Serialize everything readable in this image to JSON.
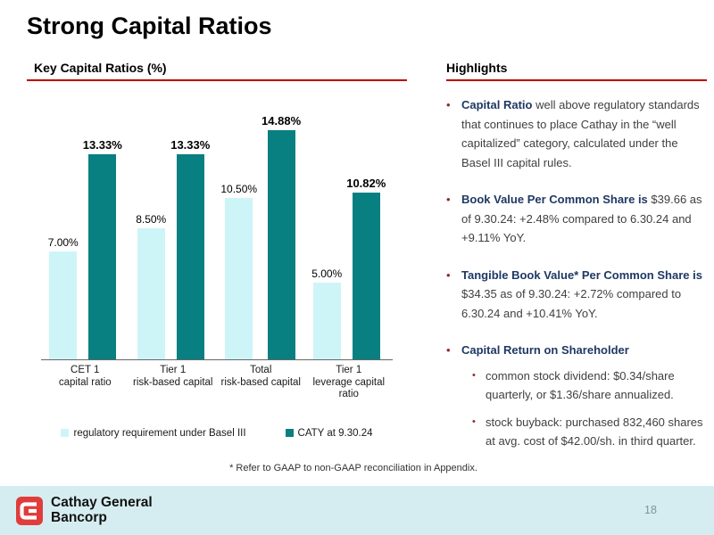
{
  "title": "Strong Capital Ratios",
  "colors": {
    "accent_red": "#c00000",
    "bullet_dot": "#8f2b2a",
    "navy_bold_text": "#1f3864",
    "body_text": "#3f3f3f",
    "teal_dark": "#087f81",
    "cyan_light": "#cdf5f7",
    "footer_bg": "#d5edf0",
    "logo_red": "#e03c3c",
    "page_number_gray": "#7e939b"
  },
  "chart_data": {
    "type": "bar",
    "title": "Key Capital Ratios (%)",
    "categories": [
      [
        "CET 1",
        "capital ratio"
      ],
      [
        "Tier 1",
        "risk-based capital"
      ],
      [
        "Total",
        "risk-based capital"
      ],
      [
        "Tier 1",
        "leverage capital ratio"
      ]
    ],
    "series": [
      {
        "name": "regulatory requirement under Basel III",
        "color": "#cdf5f7",
        "values": [
          7.0,
          8.5,
          10.5,
          5.0
        ],
        "labels": [
          "7.00%",
          "8.50%",
          "10.50%",
          "5.00%"
        ],
        "label_bold": false
      },
      {
        "name": "CATY at 9.30.24",
        "color": "#087f81",
        "values": [
          13.33,
          13.33,
          14.88,
          10.82
        ],
        "labels": [
          "13.33%",
          "13.33%",
          "14.88%",
          "10.82%"
        ],
        "label_bold": true
      }
    ],
    "xlabel": "",
    "ylabel": "",
    "ylim": [
      0,
      16
    ],
    "grid": false,
    "legend_position": "bottom"
  },
  "highlights": {
    "header": "Highlights",
    "bullets": [
      {
        "lead": "Capital Ratio",
        "rest": " well above regulatory standards that continues to place Cathay in the “well capitalized” category, calculated under the Basel III capital rules."
      },
      {
        "lead": "Book Value Per Common Share is",
        "rest": " $39.66 as of 9.30.24: +2.48% compared to 6.30.24 and +9.11% YoY."
      },
      {
        "lead": "Tangible Book Value* Per Common Share is",
        "rest": " $34.35 as of 9.30.24: +2.72% compared to 6.30.24 and +10.41% YoY."
      },
      {
        "lead": "Capital Return on Shareholder",
        "rest": "",
        "sub": [
          "common stock dividend: $0.34/share quarterly, or $1.36/share annualized.",
          "stock buyback: purchased 832,460 shares at avg. cost of $42.00/sh. in third quarter."
        ]
      }
    ]
  },
  "footnote": "* Refer to GAAP to non-GAAP reconciliation in Appendix.",
  "footer": {
    "logo_line1": "Cathay General",
    "logo_line2": "Bancorp",
    "page_number": "18"
  }
}
